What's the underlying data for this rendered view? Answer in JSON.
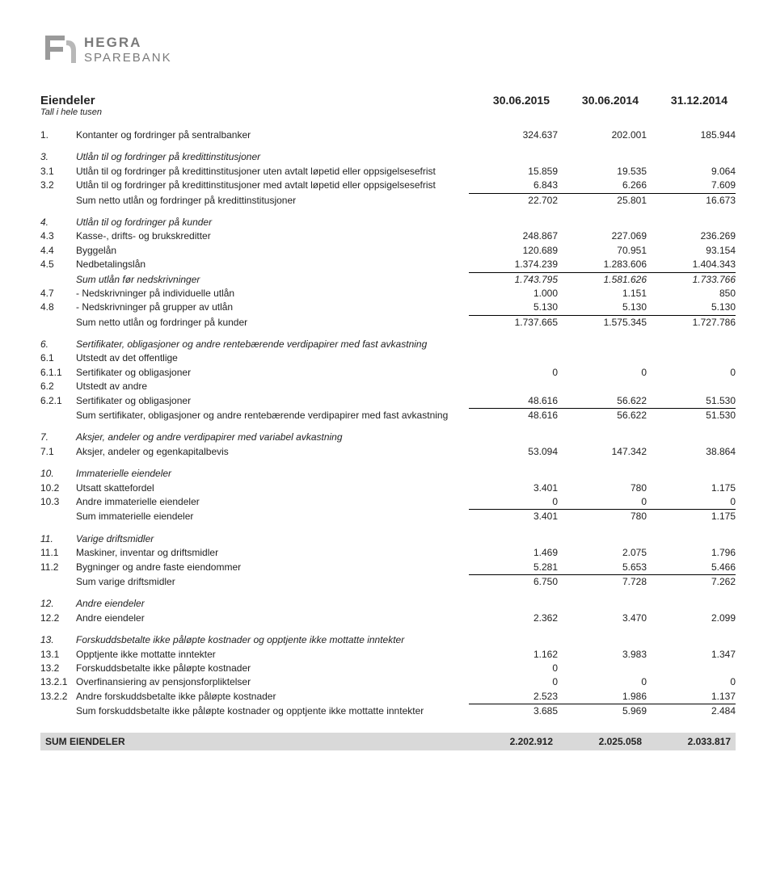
{
  "logo": {
    "line1": "HEGRA",
    "line2": "SPAREBANK"
  },
  "header": {
    "title": "Eiendeler",
    "cols": [
      "30.06.2015",
      "30.06.2014",
      "31.12.2014"
    ],
    "subtitle": "Tall i hele tusen"
  },
  "sections": {
    "s1": {
      "idx": "1.",
      "label": "Kontanter og fordringer på sentralbanker",
      "vals": [
        "324.637",
        "202.001",
        "185.944"
      ]
    },
    "s3": {
      "idx": "3.",
      "label": "Utlån til og fordringer på kredittinstitusjoner",
      "rows": [
        {
          "idx": "3.1",
          "label": "Utlån til og fordringer på kredittinstitusjoner uten avtalt løpetid eller oppsigelsesefrist",
          "vals": [
            "15.859",
            "19.535",
            "9.064"
          ]
        },
        {
          "idx": "3.2",
          "label": "Utlån til og fordringer på kredittinstitusjoner med avtalt løpetid eller oppsigelsesefrist",
          "vals": [
            "6.843",
            "6.266",
            "7.609"
          ],
          "underline": true
        },
        {
          "idx": "",
          "label": "Sum netto utlån og fordringer på kredittinstitusjoner",
          "vals": [
            "22.702",
            "25.801",
            "16.673"
          ]
        }
      ]
    },
    "s4": {
      "idx": "4.",
      "label": "Utlån til og fordringer på kunder",
      "rows": [
        {
          "idx": "4.3",
          "label": "Kasse-, drifts- og brukskreditter",
          "vals": [
            "248.867",
            "227.069",
            "236.269"
          ]
        },
        {
          "idx": "4.4",
          "label": "Byggelån",
          "vals": [
            "120.689",
            "70.951",
            "93.154"
          ]
        },
        {
          "idx": "4.5",
          "label": "Nedbetalingslån",
          "vals": [
            "1.374.239",
            "1.283.606",
            "1.404.343"
          ],
          "underline": true
        },
        {
          "idx": "",
          "label": "Sum utlån før nedskrivninger",
          "vals": [
            "1.743.795",
            "1.581.626",
            "1.733.766"
          ],
          "italic": true
        },
        {
          "idx": "4.7",
          "label": "- Nedskrivninger på individuelle utlån",
          "vals": [
            "1.000",
            "1.151",
            "850"
          ]
        },
        {
          "idx": "4.8",
          "label": "- Nedskrivninger på grupper av utlån",
          "vals": [
            "5.130",
            "5.130",
            "5.130"
          ],
          "underline": true
        },
        {
          "idx": "",
          "label": "Sum netto utlån og fordringer på kunder",
          "vals": [
            "1.737.665",
            "1.575.345",
            "1.727.786"
          ]
        }
      ]
    },
    "s6": {
      "idx": "6.",
      "label": "Sertifikater, obligasjoner og andre rentebærende verdipapirer med fast avkastning",
      "rows": [
        {
          "idx": "6.1",
          "label": "Utstedt av det offentlige",
          "vals": [
            "",
            "",
            ""
          ]
        },
        {
          "idx": "6.1.1",
          "label": "Sertifikater og obligasjoner",
          "vals": [
            "0",
            "0",
            "0"
          ]
        },
        {
          "idx": "6.2",
          "label": "Utstedt av andre",
          "vals": [
            "",
            "",
            ""
          ]
        },
        {
          "idx": "6.2.1",
          "label": "Sertifikater og obligasjoner",
          "vals": [
            "48.616",
            "56.622",
            "51.530"
          ],
          "underline": true
        },
        {
          "idx": "",
          "label": "Sum sertifikater, obligasjoner og andre rentebærende verdipapirer med fast avkastning",
          "vals": [
            "48.616",
            "56.622",
            "51.530"
          ]
        }
      ]
    },
    "s7": {
      "idx": "7.",
      "label": "Aksjer, andeler og andre verdipapirer med variabel avkastning",
      "rows": [
        {
          "idx": "7.1",
          "label": "Aksjer, andeler og egenkapitalbevis",
          "vals": [
            "53.094",
            "147.342",
            "38.864"
          ]
        }
      ]
    },
    "s10": {
      "idx": "10.",
      "label": "Immaterielle eiendeler",
      "rows": [
        {
          "idx": "10.2",
          "label": "Utsatt skattefordel",
          "vals": [
            "3.401",
            "780",
            "1.175"
          ]
        },
        {
          "idx": "10.3",
          "label": "Andre immaterielle eiendeler",
          "vals": [
            "0",
            "0",
            "0"
          ],
          "underline": true
        },
        {
          "idx": "",
          "label": "Sum immaterielle eiendeler",
          "vals": [
            "3.401",
            "780",
            "1.175"
          ]
        }
      ]
    },
    "s11": {
      "idx": "11.",
      "label": "Varige driftsmidler",
      "rows": [
        {
          "idx": "11.1",
          "label": "Maskiner, inventar og driftsmidler",
          "vals": [
            "1.469",
            "2.075",
            "1.796"
          ]
        },
        {
          "idx": "11.2",
          "label": "Bygninger og andre faste eiendommer",
          "vals": [
            "5.281",
            "5.653",
            "5.466"
          ],
          "underline": true
        },
        {
          "idx": "",
          "label": "Sum varige driftsmidler",
          "vals": [
            "6.750",
            "7.728",
            "7.262"
          ]
        }
      ]
    },
    "s12": {
      "idx": "12.",
      "label": "Andre eiendeler",
      "rows": [
        {
          "idx": "12.2",
          "label": "Andre eiendeler",
          "vals": [
            "2.362",
            "3.470",
            "2.099"
          ]
        }
      ]
    },
    "s13": {
      "idx": "13.",
      "label": "Forskuddsbetalte ikke påløpte kostnader og opptjente ikke mottatte inntekter",
      "rows": [
        {
          "idx": "13.1",
          "label": "Opptjente ikke mottatte inntekter",
          "vals": [
            "1.162",
            "3.983",
            "1.347"
          ]
        },
        {
          "idx": "13.2",
          "label": "Forskuddsbetalte ikke påløpte kostnader",
          "vals": [
            "0",
            "",
            ""
          ]
        },
        {
          "idx": "13.2.1",
          "label": "Overfinansiering av pensjonsforpliktelser",
          "vals": [
            "0",
            "0",
            "0"
          ]
        },
        {
          "idx": "13.2.2",
          "label": "Andre forskuddsbetalte ikke påløpte kostnader",
          "vals": [
            "2.523",
            "1.986",
            "1.137"
          ],
          "underline": true
        },
        {
          "idx": "",
          "label": "Sum forskuddsbetalte ikke påløpte kostnader og opptjente ikke mottatte inntekter",
          "vals": [
            "3.685",
            "5.969",
            "2.484"
          ]
        }
      ]
    }
  },
  "total": {
    "label": "SUM EIENDELER",
    "vals": [
      "2.202.912",
      "2.025.058",
      "2.033.817"
    ]
  }
}
